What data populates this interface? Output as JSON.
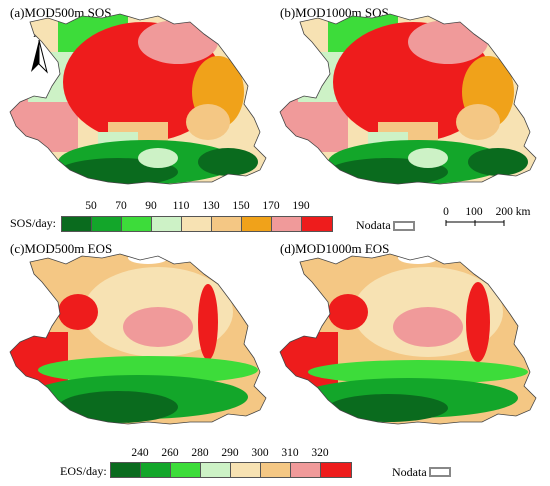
{
  "panels": {
    "a": {
      "title": "(a)MOD500m SOS"
    },
    "b": {
      "title": "(b)MOD1000m SOS"
    },
    "c": {
      "title": "(c)MOD500m EOS"
    },
    "d": {
      "title": "(d)MOD1000m EOS"
    }
  },
  "north_arrow": {
    "label": "N",
    "icon": "north-arrow-icon"
  },
  "sos_legend": {
    "label": "SOS/day:",
    "ticks": [
      "50",
      "70",
      "90",
      "110",
      "130",
      "150",
      "170",
      "190"
    ],
    "colors": [
      "#0a6b1e",
      "#13a62a",
      "#3ddc3a",
      "#cdf2c6",
      "#f7e2b3",
      "#f4c784",
      "#f0a21a",
      "#f09a9a",
      "#ee1c1c"
    ]
  },
  "eos_legend": {
    "label": "EOS/day:",
    "ticks": [
      "240",
      "260",
      "280",
      "290",
      "300",
      "310",
      "320"
    ],
    "colors": [
      "#0a6b1e",
      "#13a62a",
      "#3ddc3a",
      "#cdf2c6",
      "#f7e2b3",
      "#f4c784",
      "#f09a9a",
      "#ee1c1c"
    ]
  },
  "nodata_label": "Nodata",
  "scale_bar": {
    "ticks": [
      "0",
      "100",
      "200 km"
    ]
  }
}
